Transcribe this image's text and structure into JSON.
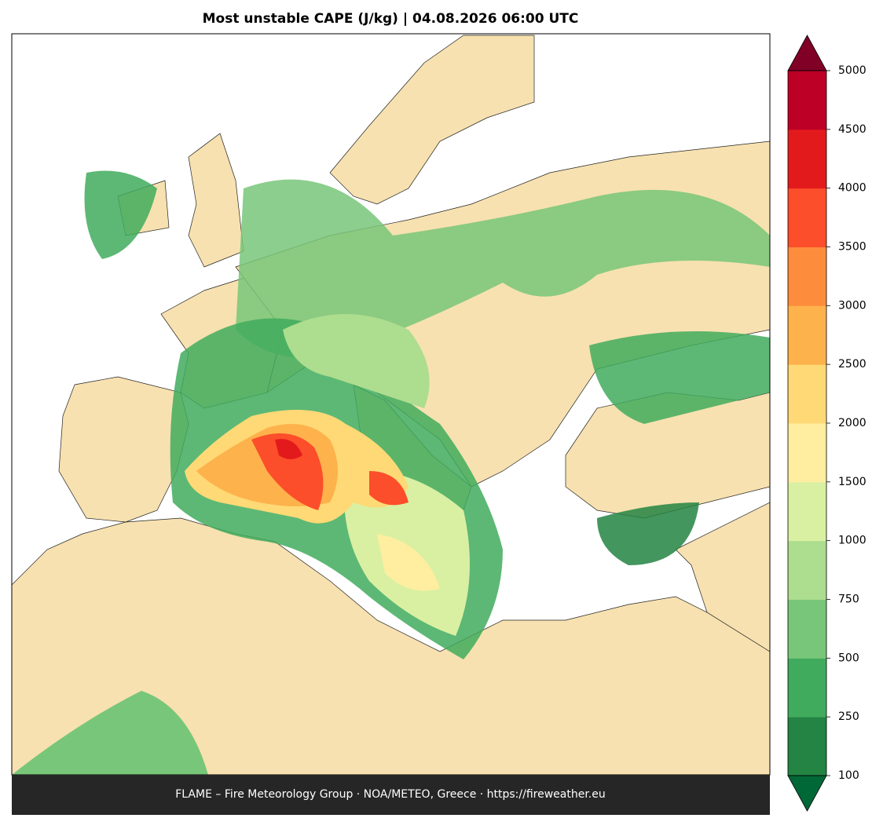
{
  "map": {
    "title": "Most unstable CAPE (J/kg)  |  04.08.2026 06:00 UTC",
    "footer": "FLAME – Fire Meteorology Group · NOA/METEO, Greece · https://fireweather.eu",
    "colorbar": {
      "ticks": [
        100,
        250,
        500,
        750,
        1000,
        1500,
        2000,
        2500,
        3000,
        3500,
        4000,
        4500,
        5000
      ],
      "colors": [
        "#238443",
        "#41ab5d",
        "#78c679",
        "#addd8e",
        "#d9f0a3",
        "#ffeda0",
        "#fed976",
        "#feb24c",
        "#fd8d3c",
        "#fc4e2a",
        "#e31a1c",
        "#bd0026"
      ],
      "under_color": "#006837",
      "over_color": "#800026"
    }
  }
}
